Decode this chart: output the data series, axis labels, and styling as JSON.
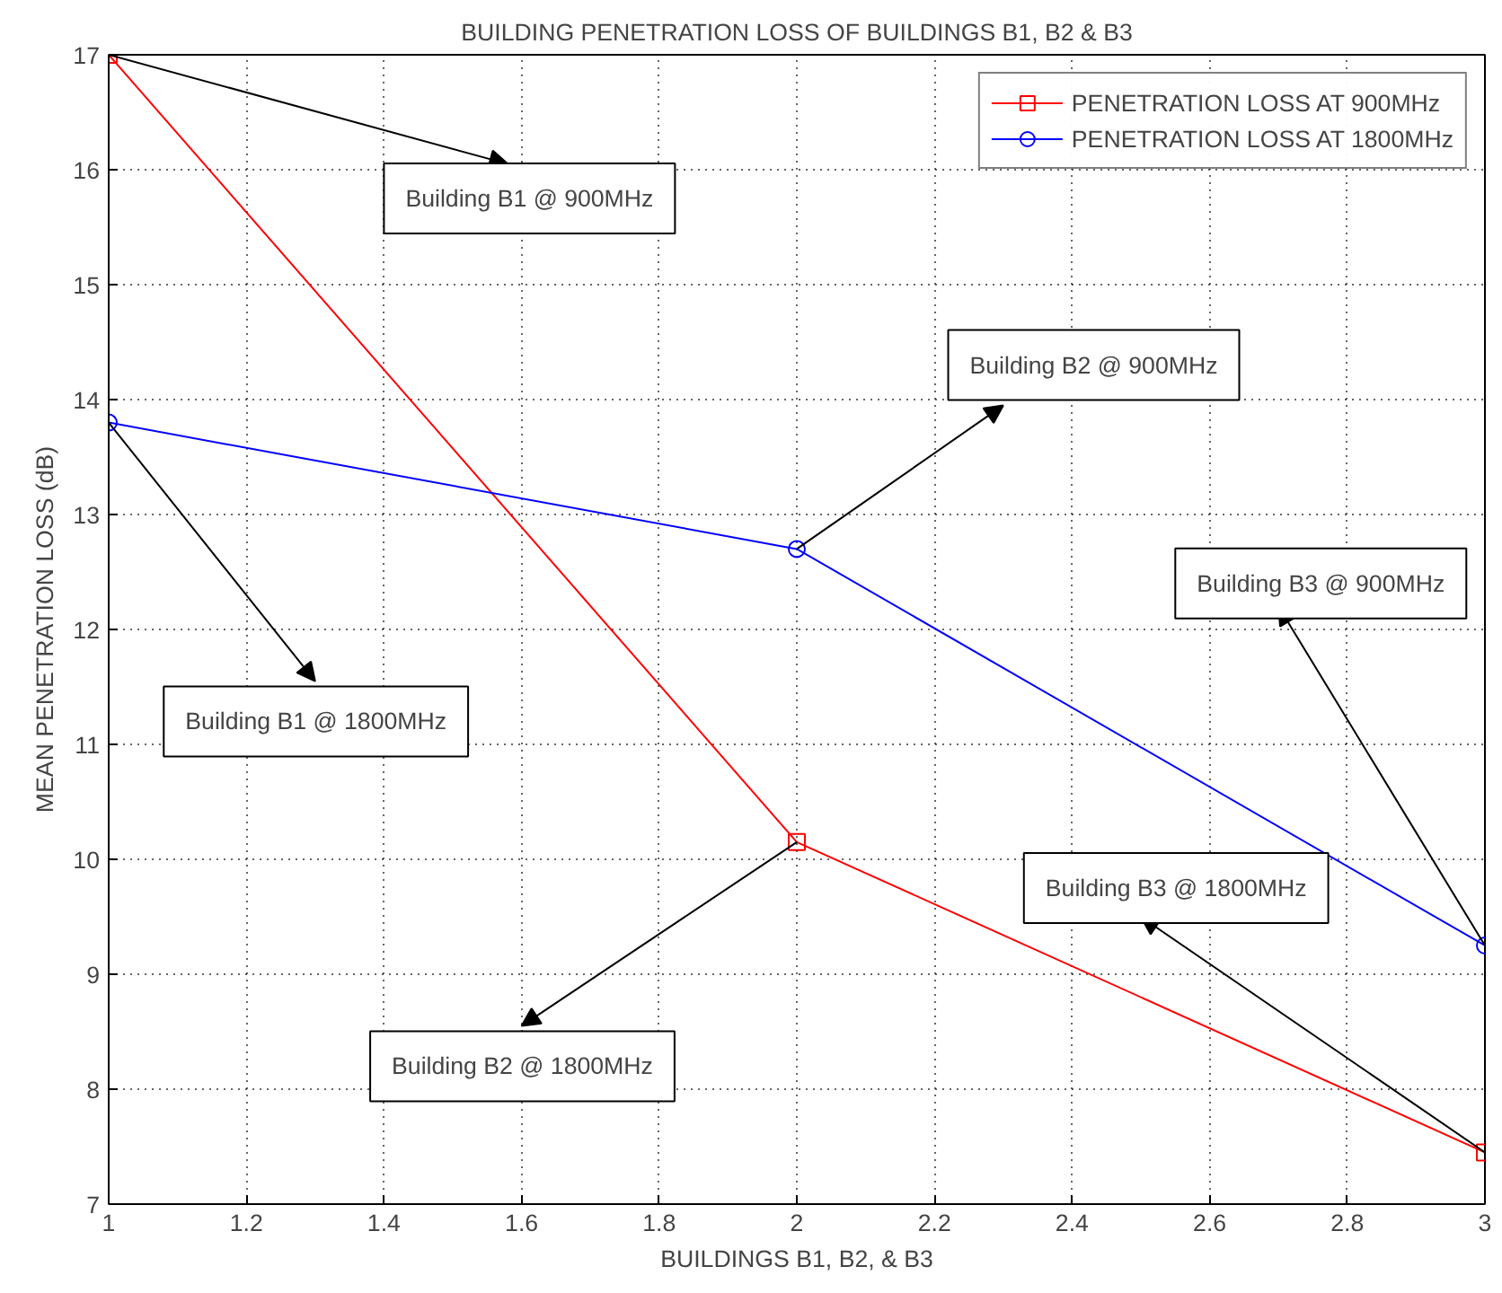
{
  "chart_data": {
    "type": "line",
    "title": "BUILDING PENETRATION LOSS OF BUILDINGS B1, B2 & B3",
    "xlabel": "BUILDINGS B1, B2, & B3",
    "ylabel": "MEAN PENETRATION LOSS (dB)",
    "x": [
      1,
      2,
      3
    ],
    "series": [
      {
        "name": "PENETRATION LOSS AT 900MHz",
        "color": "#ff0000",
        "marker": "square",
        "values": [
          17,
          10.15,
          7.45
        ]
      },
      {
        "name": "PENETRATION LOSS AT 1800MHz",
        "color": "#0000ff",
        "marker": "circle",
        "values": [
          13.8,
          12.7,
          9.25
        ]
      }
    ],
    "xlim": [
      1,
      3
    ],
    "xticks": [
      1,
      1.2,
      1.4,
      1.6,
      1.8,
      2,
      2.2,
      2.4,
      2.6,
      2.8,
      3
    ],
    "ylim": [
      7,
      17
    ],
    "yticks": [
      7,
      8,
      9,
      10,
      11,
      12,
      13,
      14,
      15,
      16,
      17
    ],
    "grid": true,
    "legend": "top right",
    "line_style": "solid",
    "annotations": [
      {
        "text": "Building B1 @ 900MHz",
        "x": 1,
        "y": 17
      },
      {
        "text": "Building B1 @ 1800MHz",
        "x": 1,
        "y": 13.8
      },
      {
        "text": "Building B2 @ 900MHz",
        "x": 2,
        "y": 12.7
      },
      {
        "text": "Building B2 @ 1800MHz",
        "x": 2,
        "y": 10.15
      },
      {
        "text": "Building B3 @ 900MHz",
        "x": 3,
        "y": 9.25
      },
      {
        "text": "Building B3 @ 1800MHz",
        "x": 3,
        "y": 7.45
      }
    ]
  }
}
